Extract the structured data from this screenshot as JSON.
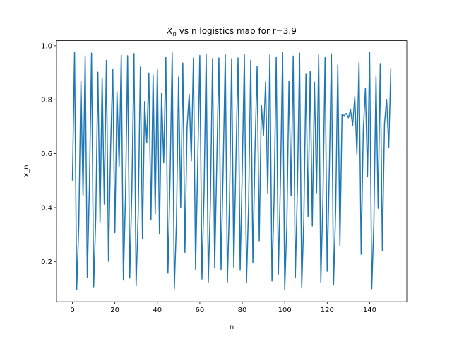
{
  "chart_data": {
    "type": "line",
    "title": {
      "symbol": "X",
      "subscript": "n",
      "text": "vs n logistics map for r=3.9"
    },
    "x_label": "n",
    "y_label": "x_n",
    "color": "#1f77b4",
    "grid": false,
    "x": [
      0,
      1,
      2,
      3,
      4,
      5,
      6,
      7,
      8,
      9,
      10,
      11,
      12,
      13,
      14,
      15,
      16,
      17,
      18,
      19,
      20,
      21,
      22,
      23,
      24,
      25,
      26,
      27,
      28,
      29,
      30,
      31,
      32,
      33,
      34,
      35,
      36,
      37,
      38,
      39,
      40,
      41,
      42,
      43,
      44,
      45,
      46,
      47,
      48,
      49,
      50,
      51,
      52,
      53,
      54,
      55,
      56,
      57,
      58,
      59,
      60,
      61,
      62,
      63,
      64,
      65,
      66,
      67,
      68,
      69,
      70,
      71,
      72,
      73,
      74,
      75,
      76,
      77,
      78,
      79,
      80,
      81,
      82,
      83,
      84,
      85,
      86,
      87,
      88,
      89,
      90,
      91,
      92,
      93,
      94,
      95,
      96,
      97,
      98,
      99,
      100,
      101,
      102,
      103,
      104,
      105,
      106,
      107,
      108,
      109,
      110,
      111,
      112,
      113,
      114,
      115,
      116,
      117,
      118,
      119,
      120,
      121,
      122,
      123,
      124,
      125,
      126,
      127,
      128,
      129,
      130,
      131,
      132,
      133,
      134,
      135,
      136,
      137,
      138,
      139,
      140,
      141,
      142,
      143,
      144,
      145,
      146,
      147,
      148,
      149,
      150
    ],
    "values": [
      0.5,
      0.975,
      0.095,
      0.336,
      0.869,
      0.443,
      0.962,
      0.142,
      0.475,
      0.973,
      0.104,
      0.364,
      0.902,
      0.344,
      0.88,
      0.413,
      0.946,
      0.201,
      0.625,
      0.914,
      0.307,
      0.83,
      0.55,
      0.965,
      0.131,
      0.444,
      0.963,
      0.139,
      0.467,
      0.971,
      0.11,
      0.382,
      0.921,
      0.284,
      0.793,
      0.64,
      0.899,
      0.354,
      0.892,
      0.376,
      0.915,
      0.303,
      0.824,
      0.566,
      0.958,
      0.157,
      0.516,
      0.974,
      0.099,
      0.347,
      0.884,
      0.4,
      0.936,
      0.234,
      0.699,
      0.821,
      0.573,
      0.954,
      0.171,
      0.553,
      0.964,
      0.135,
      0.455,
      0.967,
      0.124,
      0.424,
      0.952,
      0.178,
      0.571,
      0.955,
      0.168,
      0.545,
      0.967,
      0.124,
      0.424,
      0.952,
      0.178,
      0.571,
      0.955,
      0.167,
      0.543,
      0.968,
      0.121,
      0.415,
      0.947,
      0.196,
      0.615,
      0.923,
      0.277,
      0.781,
      0.667,
      0.866,
      0.453,
      0.966,
      0.128,
      0.435,
      0.959,
      0.153,
      0.505,
      0.975,
      0.095,
      0.335,
      0.869,
      0.443,
      0.962,
      0.142,
      0.48,
      0.973,
      0.102,
      0.357,
      0.895,
      0.367,
      0.906,
      0.332,
      0.865,
      0.455,
      0.967,
      0.124,
      0.43,
      0.956,
      0.164,
      0.535,
      0.97,
      0.113,
      0.391,
      0.929,
      0.257,
      0.745,
      0.741,
      0.749,
      0.733,
      0.763,
      0.705,
      0.811,
      0.598,
      0.938,
      0.227,
      0.684,
      0.843,
      0.516,
      0.974,
      0.099,
      0.348,
      0.885,
      0.397,
      0.934,
      0.24,
      0.711,
      0.801,
      0.622,
      0.917
    ],
    "xlim": [
      -7.5,
      157.5
    ],
    "xticks": [
      0,
      20,
      40,
      60,
      80,
      100,
      120,
      140
    ],
    "ylim": [
      0.051,
      1.019
    ],
    "yticks": [
      0.2,
      0.4,
      0.6,
      0.8,
      {
        "value": 1,
        "label": "1.0"
      }
    ]
  }
}
